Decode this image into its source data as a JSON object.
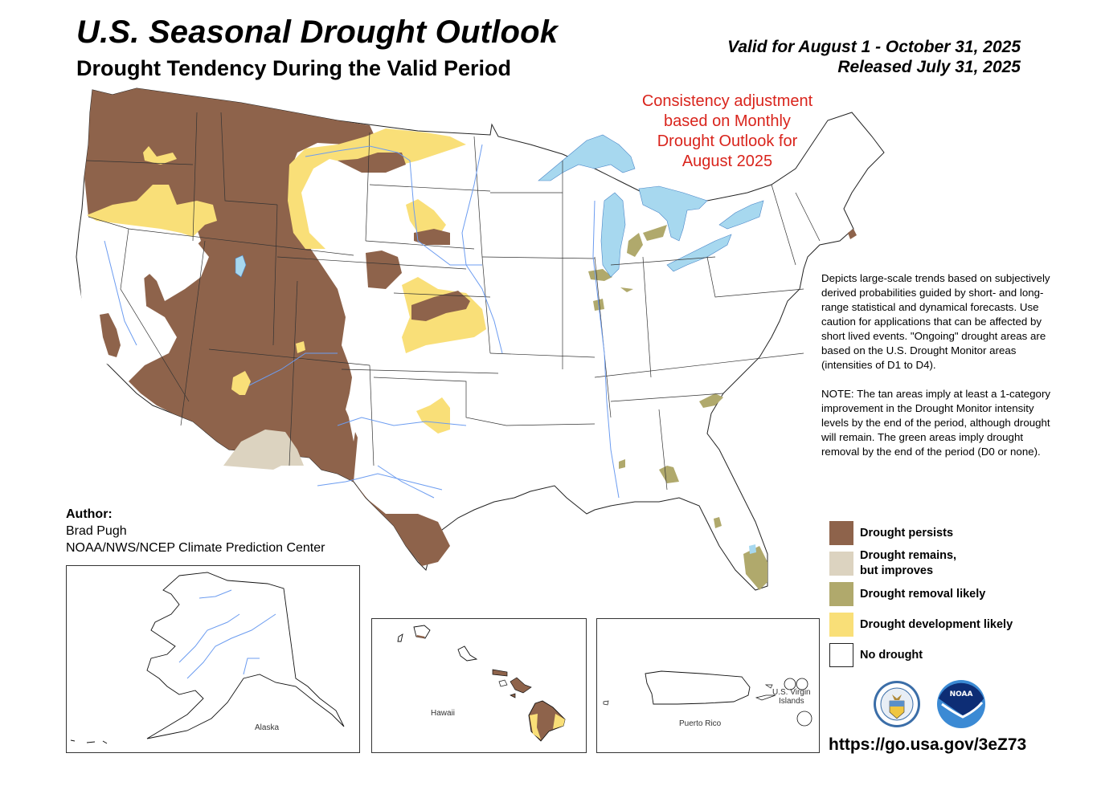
{
  "header": {
    "title": "U.S. Seasonal Drought Outlook",
    "subtitle": "Drought Tendency During the Valid Period",
    "valid_for": "Valid for August 1 - October 31, 2025",
    "released": "Released July 31, 2025"
  },
  "annotation": {
    "lines": [
      "Consistency adjustment",
      "based on Monthly",
      "Drought Outlook for",
      "August 2025"
    ],
    "color": "#d9241c"
  },
  "description": {
    "paragraph1": "Depicts large-scale trends based on subjectively derived probabilities guided by short- and long-range statistical and dynamical forecasts. Use caution for applications that can be affected by short lived events. \"Ongoing\" drought areas are based on the U.S. Drought Monitor areas (intensities of D1 to D4).",
    "paragraph2": "NOTE: The tan areas imply at least a 1-category improvement in the Drought Monitor intensity levels by the end of the period, although drought will remain. The green areas imply drought removal by the end of the period (D0 or none)."
  },
  "legend": [
    {
      "label": "Drought persists",
      "color": "#8e634b"
    },
    {
      "label_line1": "Drought remains,",
      "label_line2": "but improves",
      "color": "#dcd3c0"
    },
    {
      "label": "Drought removal likely",
      "color": "#b0a96c"
    },
    {
      "label": "Drought development likely",
      "color": "#f9df78"
    },
    {
      "label": "No drought",
      "color": "#ffffff"
    }
  ],
  "author": {
    "heading": "Author:",
    "name": "Brad Pugh",
    "org": "NOAA/NWS/NCEP Climate Prediction Center"
  },
  "insets": {
    "alaska": "Alaska",
    "hawaii": "Hawaii",
    "puerto_rico": "Puerto Rico",
    "virgin_islands_line1": "U.S. Virgin",
    "virgin_islands_line2": "Islands"
  },
  "logos": {
    "commerce_seal": "Department of Commerce United States of America",
    "noaa": "NOAA"
  },
  "url": "https://go.usa.gov/3eZ73",
  "colors": {
    "persists": "#8e634b",
    "improves": "#dcd3c0",
    "removal": "#b0a96c",
    "development": "#f9df78",
    "water": "#a7d8ef",
    "river": "#5b8ff0"
  }
}
